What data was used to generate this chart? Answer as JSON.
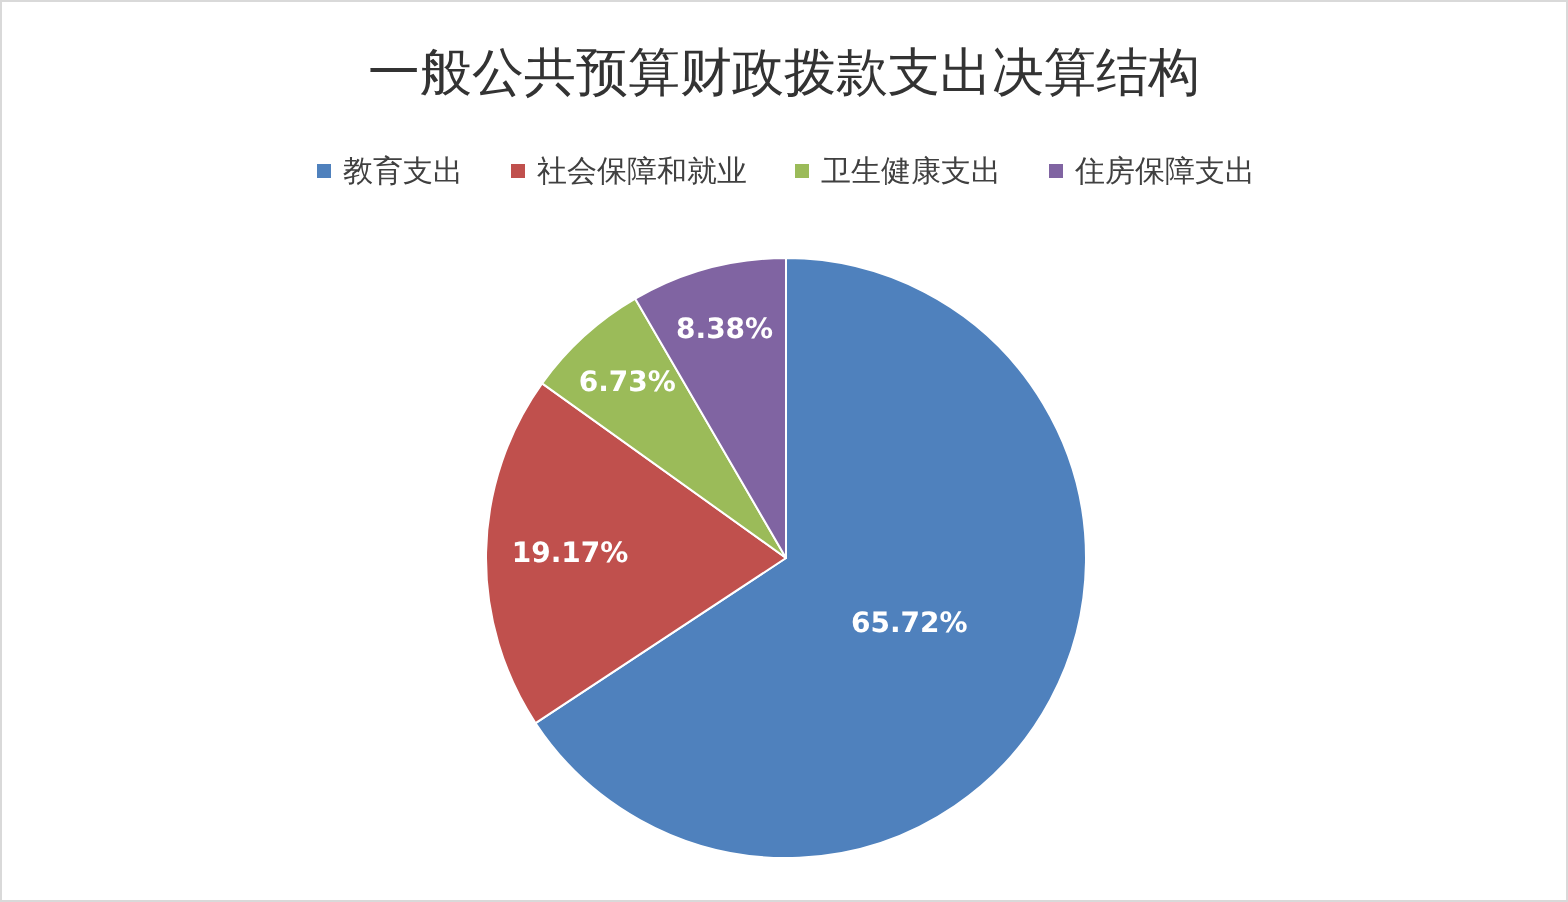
{
  "chart_data": {
    "type": "pie",
    "title": "一般公共预算财政拨款支出决算结构",
    "categories": [
      "教育支出",
      "社会保障和就业",
      "卫生健康支出",
      "住房保障支出"
    ],
    "values": [
      65.72,
      19.17,
      6.73,
      8.38
    ],
    "colors": [
      "#4f81bd",
      "#c0504d",
      "#9bbb59",
      "#8064a2"
    ],
    "value_labels": [
      "65.72%",
      "19.17%",
      "6.73%",
      "8.38%"
    ],
    "legend": "top"
  }
}
